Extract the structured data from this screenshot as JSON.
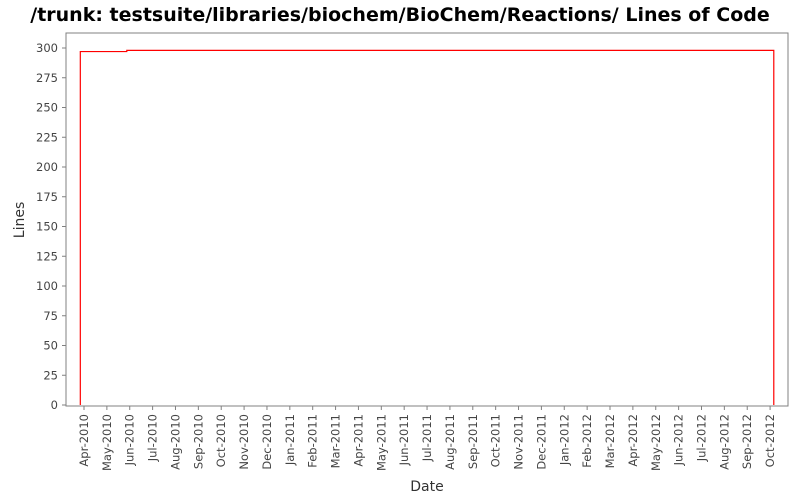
{
  "chart_data": {
    "type": "line",
    "title": "/trunk: testsuite/libraries/biochem/BioChem/Reactions/ Lines of Code",
    "xlabel": "Date",
    "ylabel": "Lines",
    "ylim": [
      0,
      310
    ],
    "yticks": [
      0,
      25,
      50,
      75,
      100,
      125,
      150,
      175,
      200,
      225,
      250,
      275,
      300
    ],
    "xticks": [
      "Apr-2010",
      "May-2010",
      "Jun-2010",
      "Jul-2010",
      "Aug-2010",
      "Sep-2010",
      "Oct-2010",
      "Nov-2010",
      "Dec-2010",
      "Jan-2011",
      "Feb-2011",
      "Mar-2011",
      "Apr-2011",
      "May-2011",
      "Jun-2011",
      "Jul-2011",
      "Aug-2011",
      "Sep-2011",
      "Oct-2011",
      "Nov-2011",
      "Dec-2011",
      "Jan-2012",
      "Feb-2012",
      "Mar-2012",
      "Apr-2012",
      "May-2012",
      "Jun-2012",
      "Jul-2012",
      "Aug-2012",
      "Sep-2012",
      "Oct-2012"
    ],
    "grid": false,
    "step": true,
    "series": [
      {
        "color": "#ff0000",
        "points": [
          [
            "2010-03-27",
            0
          ],
          [
            "2010-03-27",
            297
          ],
          [
            "2010-05-28",
            298
          ],
          [
            "2012-10-06",
            298
          ],
          [
            "2012-10-06",
            0
          ]
        ]
      }
    ]
  }
}
